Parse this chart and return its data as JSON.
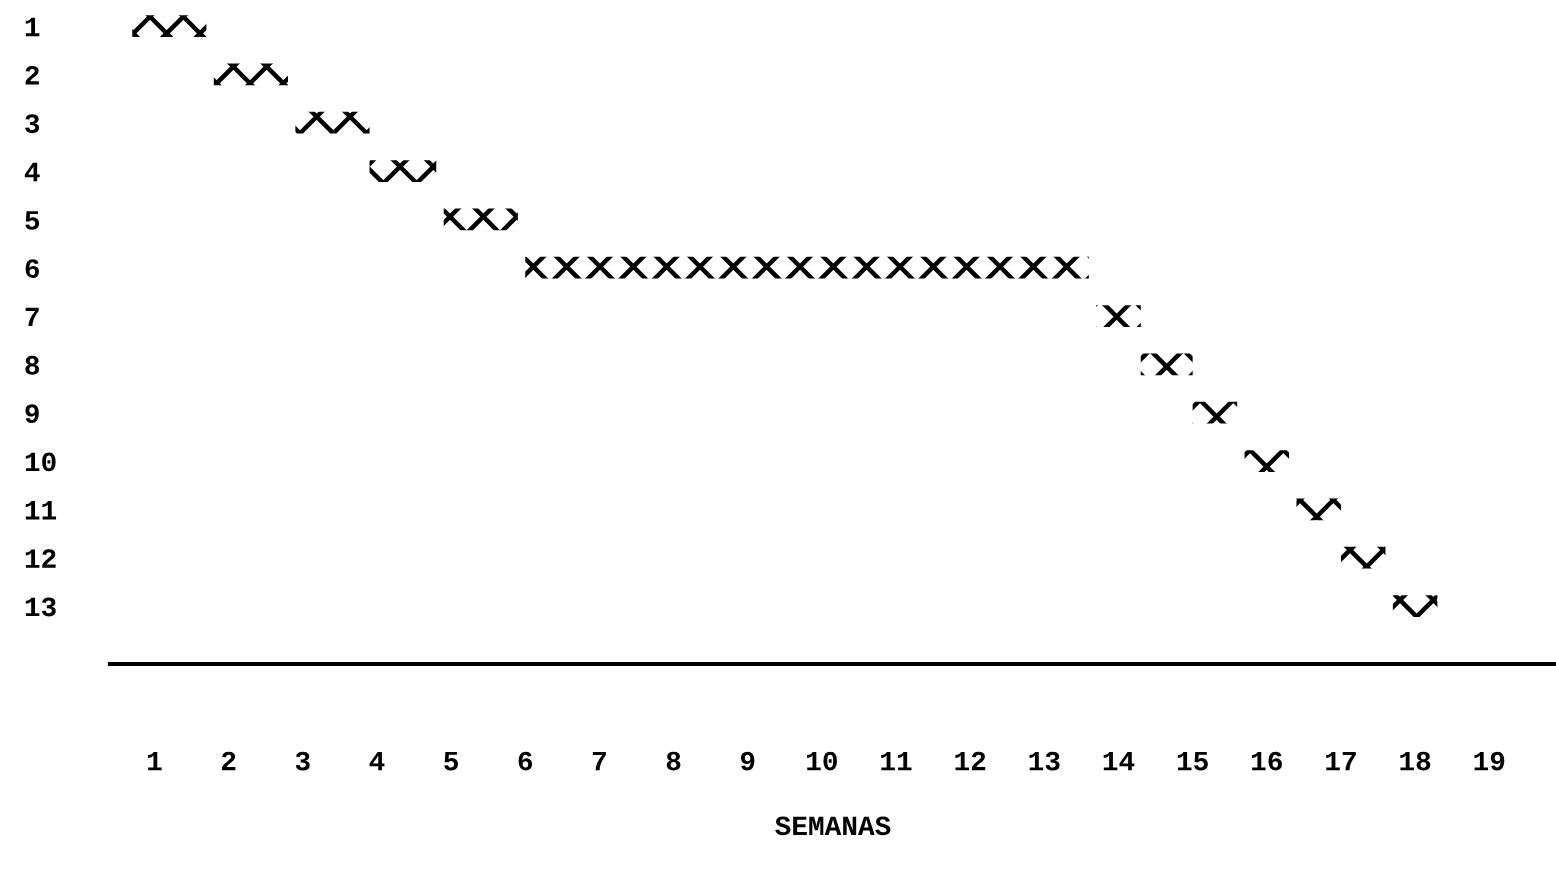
{
  "chart_data": {
    "type": "bar",
    "orientation": "horizontal",
    "xlabel": "SEMANAS",
    "categories": [
      "1",
      "2",
      "3",
      "4",
      "5",
      "6",
      "7",
      "8",
      "9",
      "10",
      "11",
      "12",
      "13"
    ],
    "base": [
      0.7,
      1.8,
      2.9,
      3.9,
      4.9,
      6.0,
      13.7,
      14.3,
      15.0,
      15.7,
      16.4,
      17.0,
      17.7
    ],
    "values": [
      1.0,
      1.0,
      1.0,
      0.9,
      1.0,
      7.6,
      0.6,
      0.7,
      0.6,
      0.6,
      0.6,
      0.6,
      0.6
    ],
    "color": "#000000",
    "xlim": [
      0.4,
      19.9
    ],
    "xticks": [
      1,
      2,
      3,
      4,
      5,
      6,
      7,
      8,
      9,
      10,
      11,
      12,
      13,
      14,
      15,
      16,
      17,
      18,
      19
    ],
    "grid": false,
    "legend": false
  }
}
